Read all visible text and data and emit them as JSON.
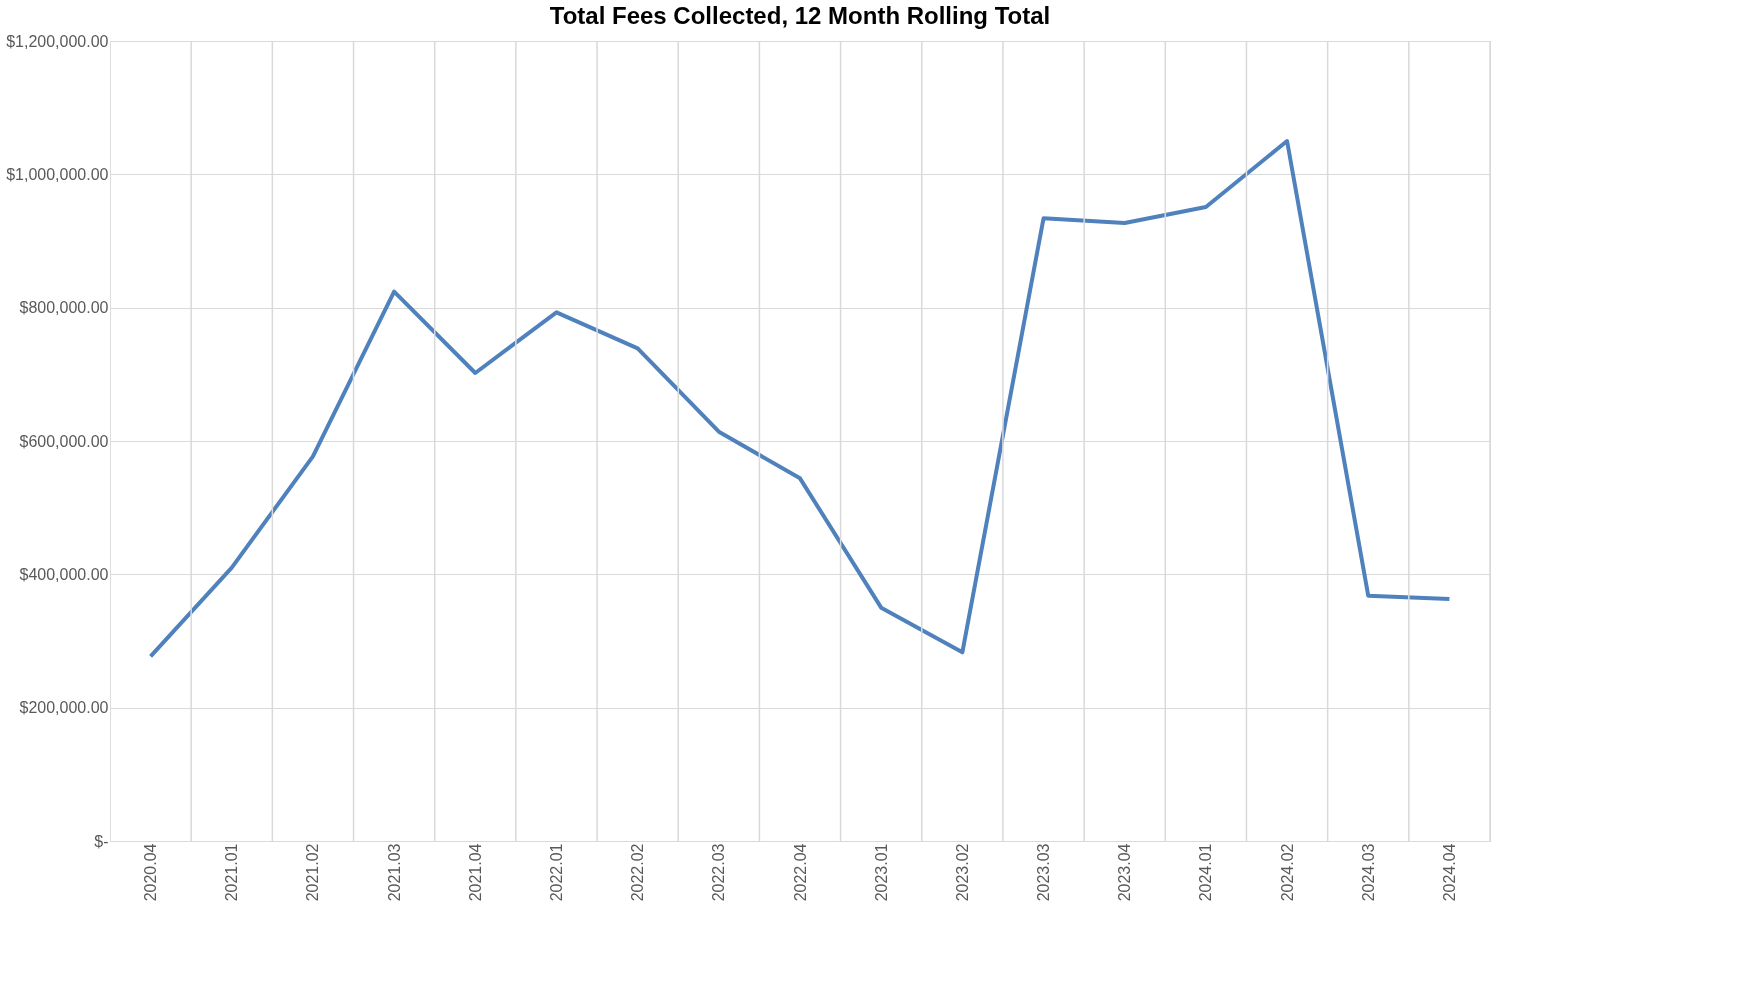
{
  "chart_data": {
    "type": "line",
    "title": "Total Fees Collected, 12 Month Rolling Total",
    "categories": [
      "2020.04",
      "2021.01",
      "2021.02",
      "2021.03",
      "2021.04",
      "2022.01",
      "2022.02",
      "2022.03",
      "2022.04",
      "2023.01",
      "2023.02",
      "2023.03",
      "2023.04",
      "2024.01",
      "2024.02",
      "2024.03",
      "2024.04"
    ],
    "series": [
      {
        "color": "#4f81bd",
        "values": [
          277000,
          410000,
          577000,
          824000,
          702000,
          793000,
          739000,
          614000,
          544000,
          350000,
          283000,
          934000,
          927000,
          951000,
          1050000,
          368000,
          363000
        ]
      }
    ],
    "ylim": [
      0,
      1200000
    ],
    "yticks": [
      {
        "value": 0,
        "label": "$-"
      },
      {
        "value": 200000,
        "label": "$200,000.00"
      },
      {
        "value": 400000,
        "label": "$400,000.00"
      },
      {
        "value": 600000,
        "label": "$600,000.00"
      },
      {
        "value": 800000,
        "label": "$800,000.00"
      },
      {
        "value": 1000000,
        "label": "$1,000,000.00"
      },
      {
        "value": 1200000,
        "label": "$1,200,000.00"
      }
    ],
    "grid": true,
    "legend": false,
    "marker": "none",
    "line_style": "solid"
  }
}
